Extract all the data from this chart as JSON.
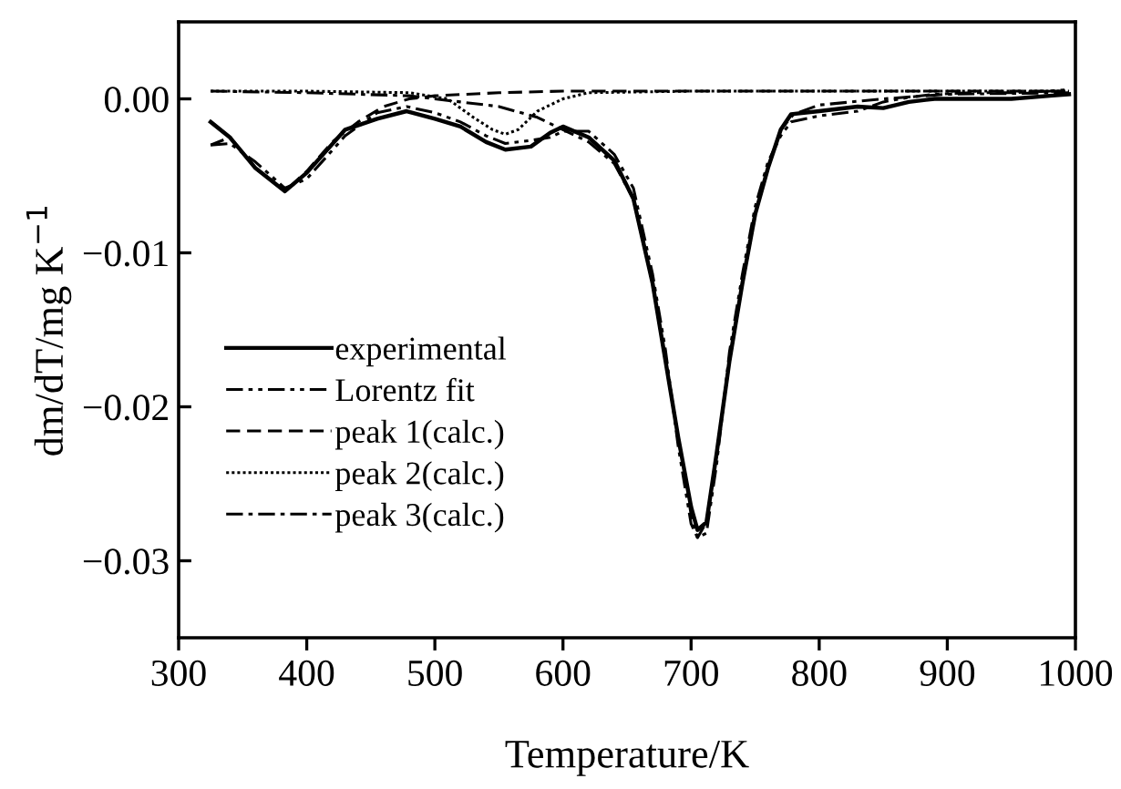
{
  "chart_data": {
    "type": "line",
    "xlabel": "Temperature/K",
    "ylabel": "dm/dT/mg K$^{−1}$",
    "xlim": [
      300,
      1000
    ],
    "xticks": [
      300,
      400,
      500,
      600,
      700,
      800,
      900,
      1000
    ],
    "ylim": [
      -0.035,
      0.005
    ],
    "yticks": [
      {
        "value": 0,
        "label": "0.00"
      },
      {
        "value": -0.01,
        "label": "−0.01"
      },
      {
        "value": -0.02,
        "label": "−0.02"
      },
      {
        "value": -0.03,
        "label": "−0.03"
      }
    ],
    "grid": false,
    "legend": "left",
    "marker": "none",
    "series": [
      {
        "name": "experimental",
        "color": "#000000",
        "line_style": "solid",
        "x": [
          325,
          340,
          360,
          383,
          400,
          430,
          455,
          478,
          500,
          520,
          540,
          555,
          575,
          590,
          600,
          620,
          640,
          655,
          670,
          680,
          690,
          700,
          705,
          712,
          720,
          730,
          740,
          750,
          760,
          770,
          778,
          800,
          830,
          850,
          870,
          890,
          920,
          950,
          980,
          995
        ],
        "values": [
          -0.0015,
          -0.0025,
          -0.0045,
          -0.006,
          -0.0048,
          -0.002,
          -0.0013,
          -0.0008,
          -0.0013,
          -0.0018,
          -0.0028,
          -0.0033,
          -0.0031,
          -0.0022,
          -0.0018,
          -0.0025,
          -0.004,
          -0.0065,
          -0.012,
          -0.017,
          -0.022,
          -0.0265,
          -0.028,
          -0.0275,
          -0.023,
          -0.017,
          -0.012,
          -0.0075,
          -0.0045,
          -0.002,
          -0.001,
          -0.0008,
          -0.0005,
          -0.0006,
          -0.0002,
          0.0,
          0.0,
          0.0,
          0.0002,
          0.0003
        ]
      },
      {
        "name": "Lorentz fit",
        "color": "#000000",
        "line_style": "dashdotdot",
        "x": [
          325,
          340,
          360,
          383,
          400,
          430,
          455,
          478,
          500,
          520,
          540,
          555,
          575,
          590,
          600,
          620,
          640,
          655,
          670,
          680,
          690,
          700,
          705,
          712,
          720,
          730,
          740,
          750,
          760,
          770,
          778,
          800,
          830,
          850,
          870,
          890,
          920,
          950,
          980,
          995
        ],
        "values": [
          -0.003,
          -0.0029,
          -0.0041,
          -0.0058,
          -0.0052,
          -0.0024,
          -0.0009,
          -0.0005,
          -0.0009,
          -0.0015,
          -0.0024,
          -0.0029,
          -0.0027,
          -0.0025,
          -0.0021,
          -0.0021,
          -0.0036,
          -0.0058,
          -0.0114,
          -0.0163,
          -0.0226,
          -0.0276,
          -0.0285,
          -0.0282,
          -0.0237,
          -0.0164,
          -0.0114,
          -0.007,
          -0.0041,
          -0.0024,
          -0.0015,
          -0.0011,
          -0.0008,
          -0.0002,
          0.0001,
          0.0003,
          0.0004,
          0.0004,
          0.0005,
          0.0006
        ]
      },
      {
        "name": "peak 1(calc.)",
        "color": "#000000",
        "line_style": "dashed",
        "x": [
          325,
          340,
          360,
          383,
          400,
          420,
          440,
          460,
          480,
          500,
          550,
          600,
          700,
          800,
          900,
          995
        ],
        "values": [
          -0.003,
          -0.0025,
          -0.0045,
          -0.006,
          -0.0047,
          -0.0028,
          -0.0015,
          -0.0005,
          0.0,
          0.0002,
          0.0004,
          0.0005,
          0.0005,
          0.0005,
          0.0005,
          0.0005
        ]
      },
      {
        "name": "peak 2(calc.)",
        "color": "#000000",
        "line_style": "dotted",
        "x": [
          325,
          400,
          480,
          510,
          530,
          545,
          555,
          565,
          580,
          600,
          620,
          700,
          800,
          900,
          995
        ],
        "values": [
          0.0005,
          0.0005,
          0.0004,
          0.0,
          -0.0012,
          -0.002,
          -0.0023,
          -0.002,
          -0.0008,
          0.0,
          0.0004,
          0.0005,
          0.0005,
          0.0005,
          0.0005
        ]
      },
      {
        "name": "peak 3(calc.)",
        "color": "#000000",
        "line_style": "dashdot",
        "x": [
          325,
          400,
          480,
          520,
          550,
          580,
          600,
          620,
          640,
          655,
          670,
          680,
          690,
          700,
          705,
          712,
          720,
          730,
          740,
          750,
          760,
          770,
          780,
          800,
          850,
          900,
          995
        ],
        "values": [
          0.0005,
          0.0004,
          0.0002,
          -0.0002,
          -0.0005,
          -0.0012,
          -0.002,
          -0.0028,
          -0.0042,
          -0.0065,
          -0.012,
          -0.017,
          -0.022,
          -0.027,
          -0.0285,
          -0.0275,
          -0.023,
          -0.017,
          -0.012,
          -0.0075,
          -0.0045,
          -0.002,
          -0.001,
          -0.0004,
          0.0,
          0.0003,
          0.0004
        ]
      }
    ]
  }
}
